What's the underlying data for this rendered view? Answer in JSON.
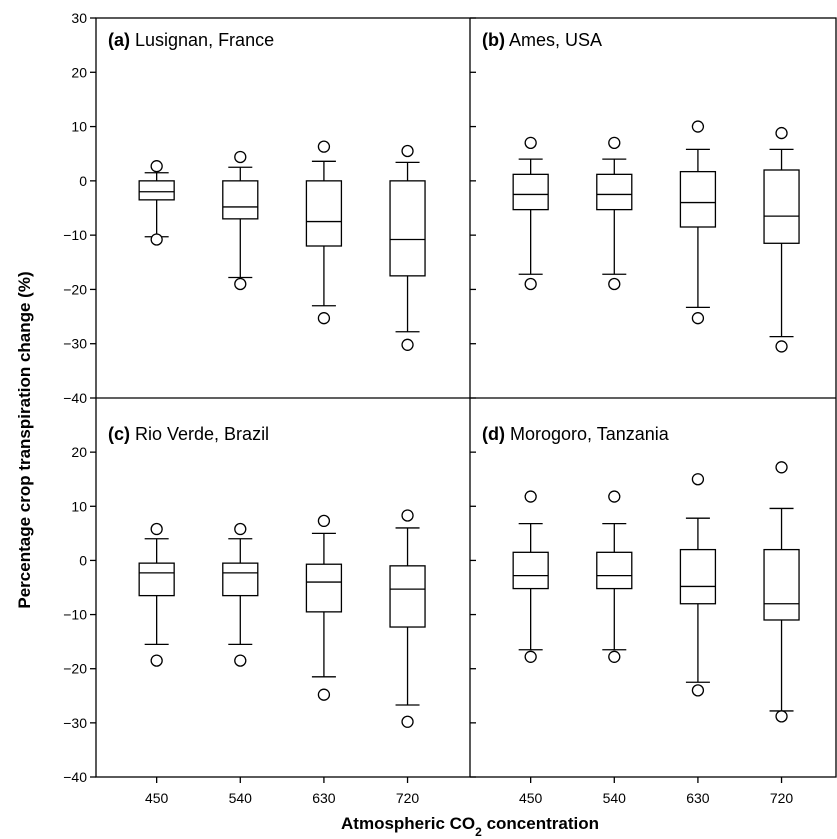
{
  "chart_data": {
    "type": "box",
    "xlabel": "Atmospheric CO",
    "xlabel_sub": "2",
    "xlabel_suffix": " concentration",
    "ylabel": "Percentage crop transpiration change (%)",
    "categories": [
      "450",
      "540",
      "630",
      "720"
    ],
    "ylim_top": [
      -40,
      30
    ],
    "ylim_bottom": [
      -40,
      30
    ],
    "yticks_top": [
      -40,
      -30,
      -20,
      -10,
      0,
      10,
      20,
      30
    ],
    "yticks_bottom": [
      -40,
      -30,
      -20,
      -10,
      0,
      10,
      20
    ],
    "tick_labels_top": [
      "−40",
      "−30",
      "−20",
      "−10",
      "0",
      "10",
      "20",
      "30"
    ],
    "tick_labels_bottom": [
      "−40",
      "−30",
      "−20",
      "−10",
      "0",
      "10",
      "20"
    ],
    "panels": [
      {
        "letter": "(a)",
        "site": " Lusignan, France",
        "boxes": [
          {
            "category": "450",
            "whisker_low": -10.3,
            "q1": -3.5,
            "median": -2,
            "q3": 0,
            "whisker_high": 1.5,
            "outliers": [
              2.7,
              -10.8
            ]
          },
          {
            "category": "540",
            "whisker_low": -17.8,
            "q1": -7,
            "median": -4.8,
            "q3": 0,
            "whisker_high": 2.5,
            "outliers": [
              4.4,
              -19
            ]
          },
          {
            "category": "630",
            "whisker_low": -23,
            "q1": -12,
            "median": -7.5,
            "q3": 0,
            "whisker_high": 3.6,
            "outliers": [
              6.3,
              -25.3
            ]
          },
          {
            "category": "720",
            "whisker_low": -27.8,
            "q1": -17.5,
            "median": -10.8,
            "q3": 0,
            "whisker_high": 3.4,
            "outliers": [
              5.5,
              -30.2
            ]
          }
        ]
      },
      {
        "letter": "(b)",
        "site": " Ames, USA",
        "boxes": [
          {
            "category": "450",
            "whisker_low": -17.2,
            "q1": -5.3,
            "median": -2.5,
            "q3": 1.2,
            "whisker_high": 4,
            "outliers": [
              7,
              -19
            ]
          },
          {
            "category": "540",
            "whisker_low": -17.2,
            "q1": -5.3,
            "median": -2.5,
            "q3": 1.2,
            "whisker_high": 4,
            "outliers": [
              7,
              -19
            ]
          },
          {
            "category": "630",
            "whisker_low": -23.3,
            "q1": -8.5,
            "median": -4,
            "q3": 1.7,
            "whisker_high": 5.8,
            "outliers": [
              10,
              -25.3
            ]
          },
          {
            "category": "720",
            "whisker_low": -28.7,
            "q1": -11.5,
            "median": -6.5,
            "q3": 2,
            "whisker_high": 5.8,
            "outliers": [
              8.8,
              -30.5
            ]
          }
        ]
      },
      {
        "letter": "(c)",
        "site": " Rio Verde, Brazil",
        "boxes": [
          {
            "category": "450",
            "whisker_low": -15.5,
            "q1": -6.5,
            "median": -2.3,
            "q3": -0.5,
            "whisker_high": 4,
            "outliers": [
              5.8,
              -18.5
            ]
          },
          {
            "category": "540",
            "whisker_low": -15.5,
            "q1": -6.5,
            "median": -2.3,
            "q3": -0.5,
            "whisker_high": 4,
            "outliers": [
              5.8,
              -18.5
            ]
          },
          {
            "category": "630",
            "whisker_low": -21.5,
            "q1": -9.5,
            "median": -4,
            "q3": -0.7,
            "whisker_high": 5,
            "outliers": [
              7.3,
              -24.8
            ]
          },
          {
            "category": "720",
            "whisker_low": -26.7,
            "q1": -12.3,
            "median": -5.3,
            "q3": -1,
            "whisker_high": 6,
            "outliers": [
              8.3,
              -29.8
            ]
          }
        ]
      },
      {
        "letter": "(d)",
        "site": " Morogoro, Tanzania",
        "boxes": [
          {
            "category": "450",
            "whisker_low": -16.5,
            "q1": -5.2,
            "median": -2.8,
            "q3": 1.5,
            "whisker_high": 6.8,
            "outliers": [
              11.8,
              -17.8
            ]
          },
          {
            "category": "540",
            "whisker_low": -16.5,
            "q1": -5.2,
            "median": -2.8,
            "q3": 1.5,
            "whisker_high": 6.8,
            "outliers": [
              11.8,
              -17.8
            ]
          },
          {
            "category": "630",
            "whisker_low": -22.5,
            "q1": -8,
            "median": -4.8,
            "q3": 2,
            "whisker_high": 7.8,
            "outliers": [
              15,
              -24
            ]
          },
          {
            "category": "720",
            "whisker_low": -27.8,
            "q1": -11,
            "median": -8,
            "q3": 2,
            "whisker_high": 9.6,
            "outliers": [
              17.2,
              -28.8
            ]
          }
        ]
      }
    ]
  }
}
